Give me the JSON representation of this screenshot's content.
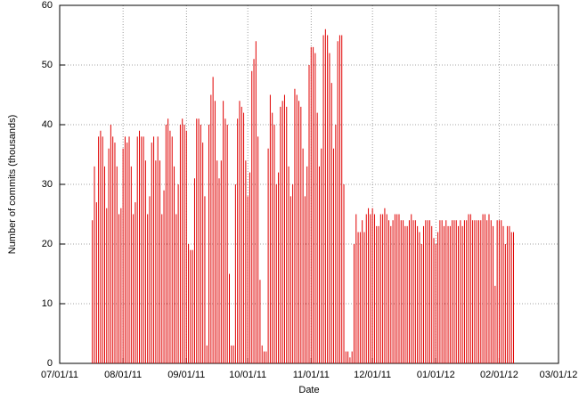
{
  "chart_data": {
    "type": "impulse",
    "xlabel": "Date",
    "ylabel": "Number of commits (thousands)",
    "color": "#e00000",
    "grid": true,
    "xlim": [
      "2011-07-01",
      "2012-03-01"
    ],
    "xticks": [
      {
        "value": "2011-07-01",
        "label": "07/01/11"
      },
      {
        "value": "2011-08-01",
        "label": "08/01/11"
      },
      {
        "value": "2011-09-01",
        "label": "09/01/11"
      },
      {
        "value": "2011-10-01",
        "label": "10/01/11"
      },
      {
        "value": "2011-11-01",
        "label": "11/01/11"
      },
      {
        "value": "2011-12-01",
        "label": "12/01/11"
      },
      {
        "value": "2012-01-01",
        "label": "01/01/12"
      },
      {
        "value": "2012-02-01",
        "label": "02/01/12"
      },
      {
        "value": "2012-03-01",
        "label": "03/01/12"
      }
    ],
    "ylim": [
      0,
      60
    ],
    "yticks": [
      0,
      10,
      20,
      30,
      40,
      50,
      60
    ],
    "x": [
      "2011-07-17",
      "2011-07-18",
      "2011-07-19",
      "2011-07-20",
      "2011-07-21",
      "2011-07-22",
      "2011-07-23",
      "2011-07-24",
      "2011-07-25",
      "2011-07-26",
      "2011-07-27",
      "2011-07-28",
      "2011-07-29",
      "2011-07-30",
      "2011-07-31",
      "2011-08-01",
      "2011-08-02",
      "2011-08-03",
      "2011-08-04",
      "2011-08-05",
      "2011-08-06",
      "2011-08-07",
      "2011-08-08",
      "2011-08-09",
      "2011-08-10",
      "2011-08-11",
      "2011-08-12",
      "2011-08-13",
      "2011-08-14",
      "2011-08-15",
      "2011-08-16",
      "2011-08-17",
      "2011-08-18",
      "2011-08-19",
      "2011-08-20",
      "2011-08-21",
      "2011-08-22",
      "2011-08-23",
      "2011-08-24",
      "2011-08-25",
      "2011-08-26",
      "2011-08-27",
      "2011-08-28",
      "2011-08-29",
      "2011-08-30",
      "2011-08-31",
      "2011-09-01",
      "2011-09-02",
      "2011-09-03",
      "2011-09-04",
      "2011-09-05",
      "2011-09-06",
      "2011-09-07",
      "2011-09-08",
      "2011-09-09",
      "2011-09-10",
      "2011-09-11",
      "2011-09-12",
      "2011-09-13",
      "2011-09-14",
      "2011-09-15",
      "2011-09-16",
      "2011-09-17",
      "2011-09-18",
      "2011-09-19",
      "2011-09-20",
      "2011-09-21",
      "2011-09-22",
      "2011-09-23",
      "2011-09-24",
      "2011-09-25",
      "2011-09-26",
      "2011-09-27",
      "2011-09-28",
      "2011-09-29",
      "2011-09-30",
      "2011-10-01",
      "2011-10-02",
      "2011-10-03",
      "2011-10-04",
      "2011-10-05",
      "2011-10-06",
      "2011-10-07",
      "2011-10-08",
      "2011-10-09",
      "2011-10-10",
      "2011-10-11",
      "2011-10-12",
      "2011-10-13",
      "2011-10-14",
      "2011-10-15",
      "2011-10-16",
      "2011-10-17",
      "2011-10-18",
      "2011-10-19",
      "2011-10-20",
      "2011-10-21",
      "2011-10-22",
      "2011-10-23",
      "2011-10-24",
      "2011-10-25",
      "2011-10-26",
      "2011-10-27",
      "2011-10-28",
      "2011-10-29",
      "2011-10-30",
      "2011-10-31",
      "2011-11-01",
      "2011-11-02",
      "2011-11-03",
      "2011-11-04",
      "2011-11-05",
      "2011-11-06",
      "2011-11-07",
      "2011-11-08",
      "2011-11-09",
      "2011-11-10",
      "2011-11-11",
      "2011-11-12",
      "2011-11-13",
      "2011-11-14",
      "2011-11-15",
      "2011-11-16",
      "2011-11-17",
      "2011-11-18",
      "2011-11-19",
      "2011-11-20",
      "2011-11-21",
      "2011-11-22",
      "2011-11-23",
      "2011-11-24",
      "2011-11-25",
      "2011-11-26",
      "2011-11-27",
      "2011-11-28",
      "2011-11-29",
      "2011-11-30",
      "2011-12-01",
      "2011-12-02",
      "2011-12-03",
      "2011-12-04",
      "2011-12-05",
      "2011-12-06",
      "2011-12-07",
      "2011-12-08",
      "2011-12-09",
      "2011-12-10",
      "2011-12-11",
      "2011-12-12",
      "2011-12-13",
      "2011-12-14",
      "2011-12-15",
      "2011-12-16",
      "2011-12-17",
      "2011-12-18",
      "2011-12-19",
      "2011-12-20",
      "2011-12-21",
      "2011-12-22",
      "2011-12-23",
      "2011-12-24",
      "2011-12-25",
      "2011-12-26",
      "2011-12-27",
      "2011-12-28",
      "2011-12-29",
      "2011-12-30",
      "2011-12-31",
      "2012-01-01",
      "2012-01-02",
      "2012-01-03",
      "2012-01-04",
      "2012-01-05",
      "2012-01-06",
      "2012-01-07",
      "2012-01-08",
      "2012-01-09",
      "2012-01-10",
      "2012-01-11",
      "2012-01-12",
      "2012-01-13",
      "2012-01-14",
      "2012-01-15",
      "2012-01-16",
      "2012-01-17",
      "2012-01-18",
      "2012-01-19",
      "2012-01-20",
      "2012-01-21",
      "2012-01-22",
      "2012-01-23",
      "2012-01-24",
      "2012-01-25",
      "2012-01-26",
      "2012-01-27",
      "2012-01-28",
      "2012-01-29",
      "2012-01-30",
      "2012-01-31",
      "2012-02-01",
      "2012-02-02",
      "2012-02-03",
      "2012-02-04",
      "2012-02-05",
      "2012-02-06",
      "2012-02-07",
      "2012-02-08"
    ],
    "values": [
      24,
      33,
      27,
      38,
      39,
      38,
      33,
      26,
      36,
      40,
      38,
      37,
      33,
      25,
      26,
      36,
      38,
      37,
      38,
      33,
      25,
      27,
      38,
      39,
      38,
      38,
      34,
      25,
      28,
      37,
      38,
      34,
      38,
      34,
      25,
      29,
      40,
      41,
      39,
      38,
      33,
      25,
      30,
      40,
      41,
      40,
      39,
      20,
      19,
      19,
      31,
      41,
      41,
      40,
      37,
      28,
      3,
      40,
      45,
      48,
      44,
      34,
      31,
      34,
      44,
      41,
      40,
      15,
      3,
      3,
      30,
      41,
      44,
      43,
      42,
      34,
      28,
      32,
      49,
      51,
      54,
      38,
      14,
      3,
      2,
      2,
      36,
      45,
      42,
      40,
      30,
      32,
      43,
      44,
      45,
      43,
      33,
      28,
      30,
      46,
      45,
      44,
      43,
      36,
      28,
      33,
      50,
      53,
      53,
      52,
      42,
      33,
      36,
      55,
      56,
      55,
      52,
      47,
      36,
      40,
      54,
      55,
      55,
      30,
      2,
      2,
      1,
      2,
      20,
      25,
      22,
      22,
      24,
      22,
      25,
      26,
      25,
      26,
      25,
      23,
      23,
      25,
      25,
      26,
      25,
      24,
      23,
      24,
      25,
      25,
      25,
      24,
      24,
      23,
      23,
      24,
      25,
      24,
      24,
      23,
      22,
      20,
      23,
      24,
      24,
      24,
      23,
      21,
      20,
      22,
      24,
      24,
      23,
      24,
      23,
      23,
      24,
      24,
      24,
      23,
      24,
      23,
      24,
      24,
      25,
      25,
      24,
      24,
      24,
      24,
      24,
      25,
      25,
      24,
      25,
      24,
      23,
      13,
      24,
      24,
      24,
      23,
      20,
      23,
      23,
      22,
      22
    ]
  }
}
